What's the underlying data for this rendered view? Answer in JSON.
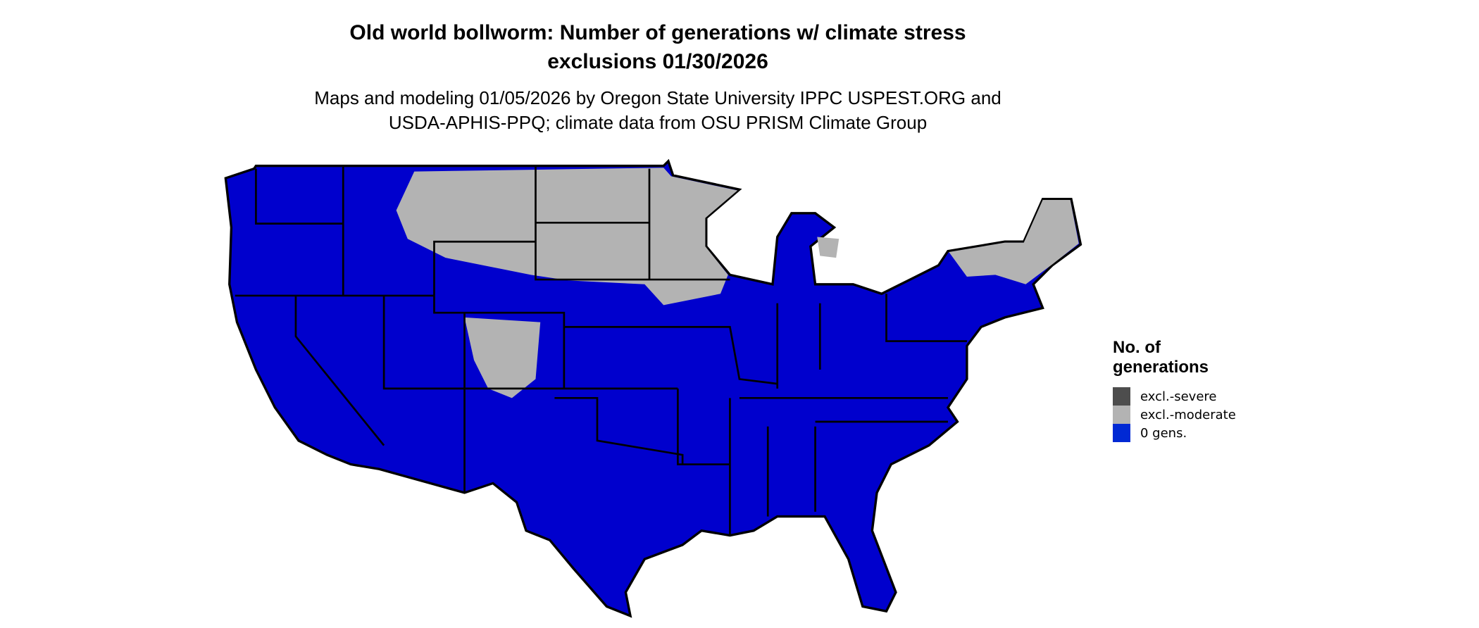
{
  "title_line1": "Old world bollworm: Number of generations w/ climate stress",
  "title_line2": "exclusions 01/30/2026",
  "subtitle_line1": "Maps and modeling 01/05/2026 by Oregon State University IPPC USPEST.ORG and",
  "subtitle_line2": "USDA-APHIS-PPQ; climate data from OSU PRISM Climate Group",
  "map": {
    "region": "conterminous United States",
    "border_color": "#000000"
  },
  "legend": {
    "title_line1": "No. of",
    "title_line2": "generations",
    "items": [
      {
        "label": "excl.-severe",
        "color": "#4d4d4d"
      },
      {
        "label": "excl.-moderate",
        "color": "#b3b3b3"
      },
      {
        "label": "0 gens.",
        "color": "#0000cd"
      }
    ]
  }
}
